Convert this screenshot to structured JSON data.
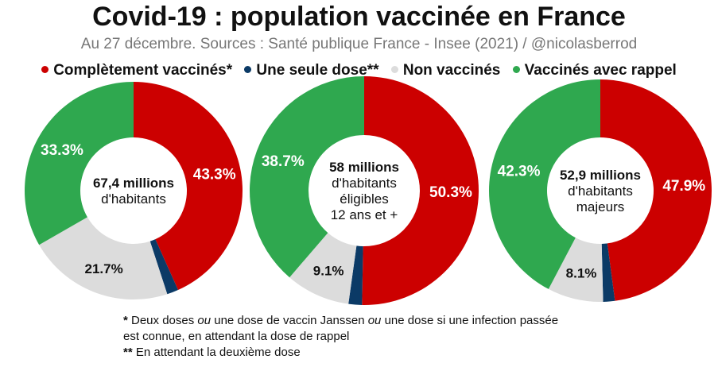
{
  "title": "Covid-19 : population vaccinée en France",
  "subtitle": "Au 27 décembre. Sources : Santé publique France - Insee (2021) / @nicolasberrod",
  "legend": [
    {
      "label": "Complètement vaccinés*",
      "color": "#cc0000"
    },
    {
      "label": "Une seule dose**",
      "color": "#0b3a66"
    },
    {
      "label": "Non vaccinés",
      "color": "#dcdcdc"
    },
    {
      "label": "Vaccinés avec rappel",
      "color": "#2fa84f"
    }
  ],
  "chart_data": [
    {
      "type": "pie",
      "donut": true,
      "center_lines": [
        {
          "text": "67,4 millions",
          "bold": true
        },
        {
          "text": "d'habitants",
          "bold": false
        }
      ],
      "series": [
        {
          "name": "Complètement vaccinés*",
          "value": 43.3,
          "label": "43.3%"
        },
        {
          "name": "Une seule dose**",
          "value": 1.7,
          "label": ""
        },
        {
          "name": "Non vaccinés",
          "value": 21.7,
          "label": "21.7%"
        },
        {
          "name": "Vaccinés avec rappel",
          "value": 33.3,
          "label": "33.3%"
        }
      ]
    },
    {
      "type": "pie",
      "donut": true,
      "center_lines": [
        {
          "text": "58 millions",
          "bold": true
        },
        {
          "text": "d'habitants",
          "bold": false
        },
        {
          "text": "éligibles",
          "bold": false
        },
        {
          "text": "12 ans et +",
          "bold": false
        }
      ],
      "series": [
        {
          "name": "Complètement vaccinés*",
          "value": 50.3,
          "label": "50.3%"
        },
        {
          "name": "Une seule dose**",
          "value": 1.9,
          "label": ""
        },
        {
          "name": "Non vaccinés",
          "value": 9.1,
          "label": "9.1%"
        },
        {
          "name": "Vaccinés avec rappel",
          "value": 38.7,
          "label": "38.7%"
        }
      ]
    },
    {
      "type": "pie",
      "donut": true,
      "center_lines": [
        {
          "text": "52,9 millions",
          "bold": true
        },
        {
          "text": "d'habitants",
          "bold": false
        },
        {
          "text": "majeurs",
          "bold": false
        }
      ],
      "series": [
        {
          "name": "Complètement vaccinés*",
          "value": 47.9,
          "label": "47.9%"
        },
        {
          "name": "Une seule dose**",
          "value": 1.7,
          "label": ""
        },
        {
          "name": "Non vaccinés",
          "value": 8.1,
          "label": "8.1%"
        },
        {
          "name": "Vaccinés avec rappel",
          "value": 42.3,
          "label": "42.3%"
        }
      ]
    }
  ],
  "footnotes": [
    {
      "marker": "*",
      "text": " Deux doses ",
      "italic1": "ou",
      "text2": " une dose de vaccin Janssen ",
      "italic2": "ou",
      "text3": " une dose si une infection passée"
    },
    {
      "text": "est connue, en attendant la dose de rappel"
    },
    {
      "marker": "**",
      "text": " En attendant la deuxième dose"
    }
  ]
}
